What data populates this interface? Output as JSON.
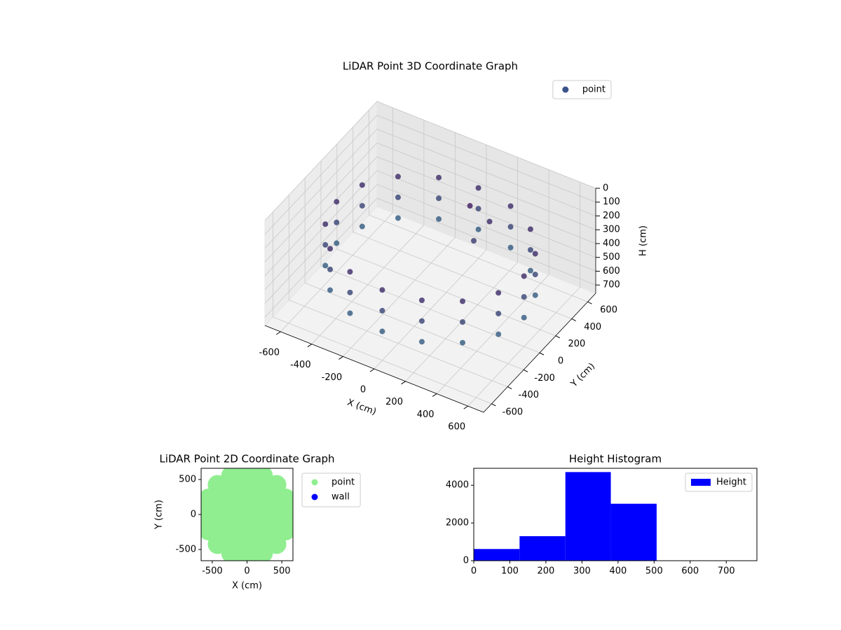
{
  "chart_data": [
    {
      "type": "scatter3d",
      "title": "LiDAR Point 3D Coordinate Graph",
      "xlabel": "X (cm)",
      "ylabel": "Y (cm)",
      "zlabel": "H (cm)",
      "xlim": [
        -700,
        700
      ],
      "ylim": [
        -700,
        700
      ],
      "zlim": [
        760,
        0
      ],
      "xticks": [
        -600,
        -400,
        -200,
        0,
        200,
        400,
        600
      ],
      "yticks": [
        -600,
        -400,
        -200,
        0,
        200,
        400,
        600
      ],
      "zticks": [
        0,
        100,
        200,
        300,
        400,
        500,
        600,
        700
      ],
      "legend": "upper right",
      "series": [
        {
          "name": "point",
          "color": "#3b528b",
          "x": [
            600,
            554,
            424,
            230,
            0,
            -230,
            -424,
            -554,
            -600,
            -554,
            -424,
            -230,
            0,
            230,
            424,
            554,
            600,
            554,
            424,
            230,
            0,
            -230,
            -424,
            -554,
            -600,
            -554,
            -424,
            -230,
            0,
            230,
            424,
            554,
            600,
            554,
            424,
            230,
            0,
            -230,
            -424,
            -554,
            -600,
            -554,
            -424,
            -230,
            0,
            230,
            424,
            554,
            100,
            200,
            150
          ],
          "y": [
            0,
            230,
            424,
            554,
            600,
            554,
            424,
            230,
            0,
            -230,
            -424,
            -554,
            -600,
            -554,
            -424,
            -230,
            0,
            230,
            424,
            554,
            600,
            554,
            424,
            230,
            0,
            -230,
            -424,
            -554,
            -600,
            -554,
            -424,
            -230,
            0,
            230,
            424,
            554,
            600,
            554,
            424,
            230,
            0,
            -230,
            -424,
            -554,
            -600,
            -554,
            -424,
            -230,
            300,
            350,
            250
          ],
          "z": [
            250,
            250,
            250,
            250,
            250,
            250,
            250,
            250,
            250,
            250,
            250,
            250,
            250,
            250,
            250,
            250,
            400,
            400,
            400,
            400,
            400,
            400,
            400,
            400,
            400,
            400,
            400,
            400,
            400,
            400,
            400,
            400,
            550,
            550,
            550,
            550,
            550,
            550,
            550,
            550,
            550,
            550,
            550,
            550,
            550,
            550,
            550,
            550,
            150,
            250,
            350
          ]
        }
      ]
    },
    {
      "type": "scatter",
      "title": "LiDAR Point 2D Coordinate Graph",
      "xlabel": "X (cm)",
      "ylabel": "Y (cm)",
      "xlim": [
        -660,
        660
      ],
      "ylim": [
        -660,
        660
      ],
      "xticks": [
        -500,
        0,
        500
      ],
      "yticks": [
        -500,
        0,
        500
      ],
      "legend": "outside upper right",
      "series": [
        {
          "name": "point",
          "color": "#90ee90",
          "x": [
            600,
            554,
            424,
            230,
            0,
            -230,
            -424,
            -554,
            -600,
            -554,
            -424,
            -230,
            0,
            230,
            424,
            554,
            400,
            346,
            200,
            0,
            -200,
            -346,
            -400,
            -346,
            -200,
            0,
            200,
            346,
            200,
            141,
            0,
            -141,
            -200,
            -141,
            0,
            141,
            0
          ],
          "y": [
            0,
            230,
            424,
            554,
            600,
            554,
            424,
            230,
            0,
            -230,
            -424,
            -554,
            -600,
            -554,
            -424,
            -230,
            0,
            200,
            346,
            400,
            346,
            200,
            0,
            -200,
            -346,
            -400,
            -346,
            -200,
            0,
            141,
            200,
            141,
            0,
            -141,
            -200,
            -141,
            0
          ]
        },
        {
          "name": "wall",
          "color": "#0000ff",
          "x": [],
          "y": []
        }
      ]
    },
    {
      "type": "histogram",
      "title": "Height Histogram",
      "xlim": [
        0,
        785
      ],
      "ylim": [
        0,
        4900
      ],
      "xticks": [
        0,
        100,
        200,
        300,
        400,
        500,
        600,
        700
      ],
      "yticks": [
        0,
        2000,
        4000
      ],
      "legend": "upper right",
      "bins": [
        0,
        127,
        254,
        380,
        507,
        633,
        760
      ],
      "series": [
        {
          "name": "Height",
          "color": "#0000ff",
          "values": [
            620,
            1300,
            4700,
            3020,
            0,
            0
          ]
        }
      ]
    }
  ]
}
